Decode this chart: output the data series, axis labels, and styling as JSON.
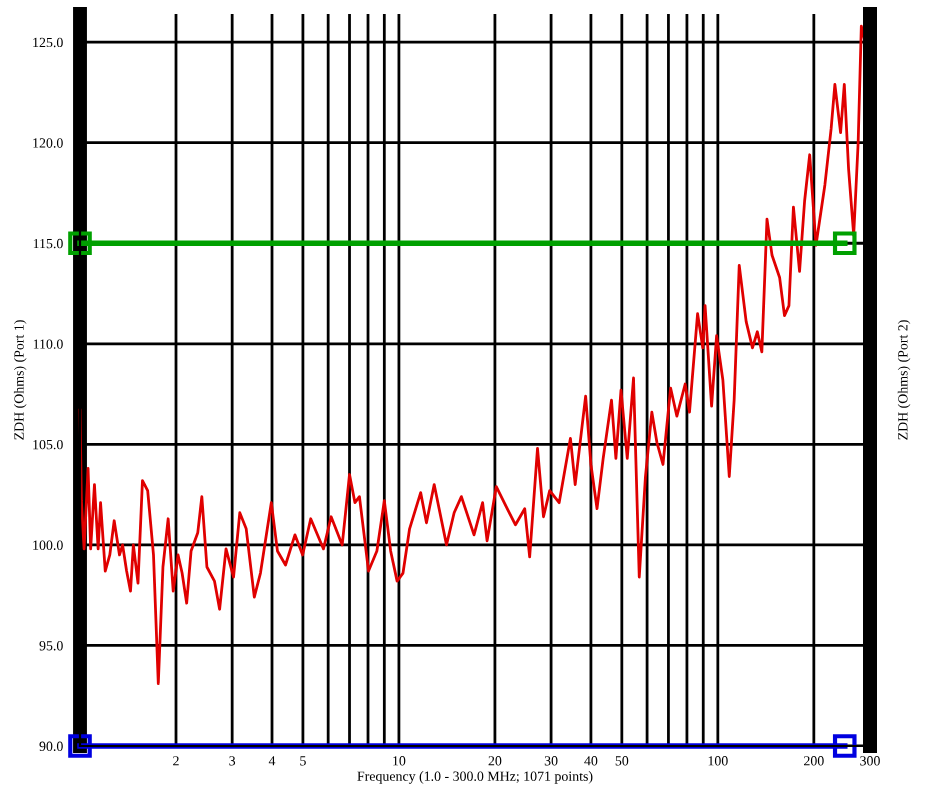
{
  "chart_data": {
    "type": "line",
    "xlabel": "Frequency (1.0 - 300.0 MHz; 1071 points)",
    "ylabel": "ZDH (Ohms) (Port 1)",
    "y2label": "ZDH (Ohms) (Port 2)",
    "log": "x",
    "grid": true,
    "legend": false,
    "xlim": [
      1,
      300
    ],
    "ylim": [
      90,
      126.4
    ],
    "xticks": [
      2,
      3,
      4,
      5,
      {
        "value": 6,
        "label": null
      },
      {
        "value": 7,
        "label": null
      },
      {
        "value": 8,
        "label": null
      },
      {
        "value": 9,
        "label": null
      },
      10,
      20,
      30,
      40,
      50,
      {
        "value": 60,
        "label": null
      },
      {
        "value": 70,
        "label": null
      },
      {
        "value": 80,
        "label": null
      },
      {
        "value": 90,
        "label": null
      },
      100,
      200,
      300
    ],
    "yticks": [
      {
        "value": 90,
        "label": "90.0"
      },
      {
        "value": 95,
        "label": "95.0"
      },
      {
        "value": 100,
        "label": "100.0"
      },
      {
        "value": 105,
        "label": "105.0"
      },
      {
        "value": 110,
        "label": "110.0"
      },
      {
        "value": 115,
        "label": "115.0"
      },
      {
        "value": 120,
        "label": "120.0"
      },
      {
        "value": 125,
        "label": "125.0"
      }
    ],
    "series": [
      {
        "color": "#e00000",
        "marker": "none",
        "x": [
          1.0,
          1.01,
          1.03,
          1.06,
          1.08,
          1.11,
          1.14,
          1.16,
          1.2,
          1.24,
          1.28,
          1.33,
          1.36,
          1.4,
          1.44,
          1.47,
          1.52,
          1.57,
          1.63,
          1.7,
          1.76,
          1.82,
          1.89,
          1.96,
          2.03,
          2.09,
          2.16,
          2.23,
          2.34,
          2.41,
          2.5,
          2.64,
          2.74,
          2.87,
          3.03,
          3.17,
          3.32,
          3.52,
          3.68,
          3.98,
          4.16,
          4.41,
          4.72,
          4.99,
          5.29,
          5.8,
          6.13,
          6.64,
          7.0,
          7.28,
          7.52,
          8.03,
          8.53,
          9.0,
          9.42,
          9.87,
          10.3,
          10.8,
          11.7,
          12.2,
          12.9,
          14.1,
          14.9,
          15.7,
          17.2,
          18.3,
          18.9,
          20.2,
          21.7,
          23.2,
          24.8,
          25.7,
          27.2,
          28.4,
          29.7,
          31.8,
          34.5,
          35.7,
          38.5,
          40.0,
          41.8,
          43.7,
          46.4,
          47.9,
          49.7,
          52.0,
          54.4,
          56.7,
          59.3,
          62.1,
          64.4,
          67.3,
          71.1,
          74.4,
          79.0,
          81.5,
          86.4,
          89.7,
          91.2,
          95.6,
          99.1,
          103.7,
          108.6,
          112.5,
          116.7,
          122.7,
          128.4,
          133.0,
          137.4,
          142.6,
          147.9,
          156.2,
          161.8,
          167.1,
          172.6,
          180.4,
          187.1,
          194.1,
          203.1,
          216.6,
          226.6,
          232.8,
          242.6,
          249.2,
          257.0,
          266.7,
          275.4,
          281.8,
          289.6,
          294.6
        ],
        "values": [
          106.7,
          102.2,
          99.8,
          103.8,
          99.8,
          103.0,
          99.8,
          102.1,
          98.7,
          99.5,
          101.2,
          99.5,
          100.0,
          98.7,
          97.7,
          100.0,
          98.1,
          103.2,
          102.7,
          99.5,
          93.1,
          98.9,
          101.3,
          97.7,
          99.5,
          98.6,
          97.1,
          99.7,
          100.6,
          102.4,
          98.9,
          98.2,
          96.8,
          99.8,
          98.4,
          101.6,
          100.8,
          97.4,
          98.6,
          102.1,
          99.7,
          99.0,
          100.5,
          99.5,
          101.3,
          99.8,
          101.4,
          100.0,
          103.5,
          102.1,
          102.4,
          98.7,
          99.7,
          102.2,
          99.7,
          98.2,
          98.6,
          100.8,
          102.6,
          101.1,
          103.0,
          100.0,
          101.6,
          102.4,
          100.5,
          102.1,
          100.2,
          102.9,
          101.9,
          101.0,
          101.8,
          99.4,
          104.8,
          101.4,
          102.7,
          102.1,
          105.3,
          103.0,
          107.4,
          104.0,
          101.8,
          104.3,
          107.2,
          104.3,
          107.7,
          104.3,
          108.3,
          98.4,
          103.4,
          106.6,
          105.1,
          104.0,
          107.8,
          106.4,
          108.0,
          106.6,
          111.5,
          109.8,
          111.9,
          106.9,
          110.4,
          108.2,
          103.4,
          107.2,
          113.9,
          111.1,
          109.8,
          110.6,
          109.6,
          116.2,
          114.4,
          113.3,
          111.4,
          111.9,
          116.8,
          113.6,
          117.1,
          119.4,
          114.9,
          117.9,
          120.7,
          122.9,
          120.5,
          122.9,
          118.7,
          115.4,
          120.0,
          125.8,
          125.0,
          125.2
        ]
      },
      {
        "color": "#00a000",
        "marker": "square",
        "x": [
          1,
          250
        ],
        "values": [
          115,
          115
        ]
      },
      {
        "color": "#0000e0",
        "marker": "square",
        "x": [
          1,
          250
        ],
        "values": [
          90,
          90
        ]
      }
    ]
  }
}
